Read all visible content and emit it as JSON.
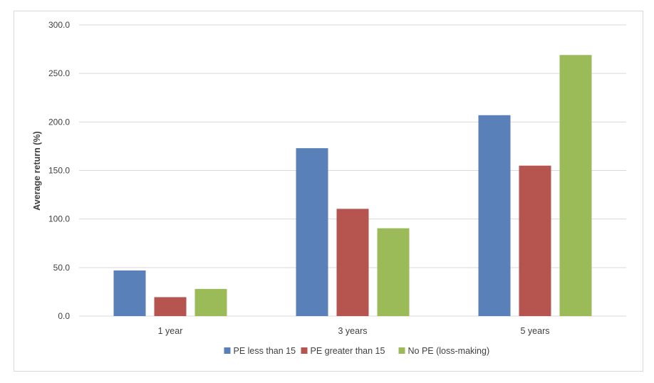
{
  "chart_data": {
    "type": "bar",
    "categories": [
      "1 year",
      "3 years",
      "5 years"
    ],
    "series": [
      {
        "name": "PE less than 15",
        "values": [
          47.0,
          173.0,
          207.0
        ],
        "color": "#5a80b9"
      },
      {
        "name": "PE greater than 15",
        "values": [
          19.5,
          110.5,
          155.0
        ],
        "color": "#b65450"
      },
      {
        "name": "No PE (loss-making)",
        "values": [
          28.0,
          90.5,
          269.0
        ],
        "color": "#9bbb59"
      }
    ],
    "title": "",
    "xlabel": "",
    "ylabel": "Average return (%)",
    "ylim": [
      0,
      300
    ],
    "yticks": [
      "0.0",
      "50.0",
      "100.0",
      "150.0",
      "200.0",
      "250.0",
      "300.0"
    ],
    "grid": true,
    "legend_position": "bottom",
    "gridline_color": "#d9d9d9"
  }
}
